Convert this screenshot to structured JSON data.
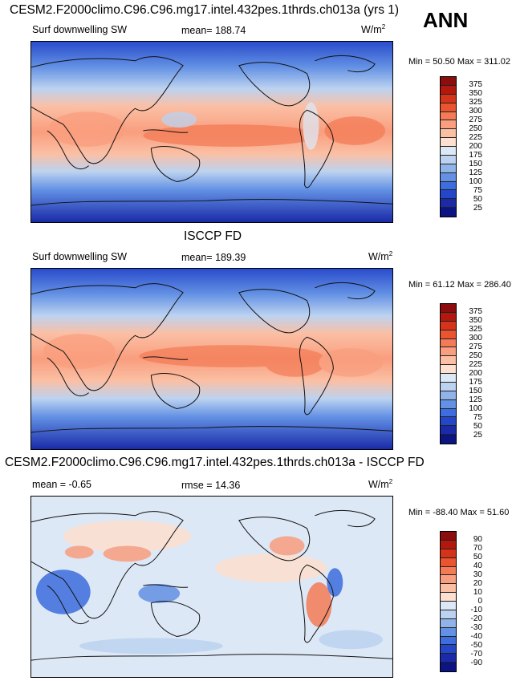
{
  "season_label": "ANN",
  "panels": [
    {
      "id": "model",
      "title": "CESM2.F2000climo.C96.C96.mg17.intel.432pes.1thrds.ch013a (yrs 1)",
      "left_label": "Surf downwelling SW",
      "mean_label": "mean=",
      "mean_value": "188.74",
      "units": "W/m",
      "units_exp": "2",
      "minmax": "Min =  50.50 Max = 311.02"
    },
    {
      "id": "obs",
      "title": "ISCCP FD",
      "left_label": "Surf downwelling SW",
      "mean_label": "mean=",
      "mean_value": "189.39",
      "units": "W/m",
      "units_exp": "2",
      "minmax": "Min =  61.12 Max = 286.40"
    },
    {
      "id": "diff",
      "title": "CESM2.F2000climo.C96.C96.mg17.intel.432pes.1thrds.ch013a - ISCCP FD",
      "left_label": "mean =  -0.65",
      "mean_label": "rmse =",
      "mean_value": "14.36",
      "units": "W/m",
      "units_exp": "2",
      "minmax": "Min = -88.40 Max =  51.60"
    }
  ],
  "colorbars": {
    "abs": {
      "labels": [
        "375",
        "350",
        "325",
        "300",
        "275",
        "250",
        "225",
        "200",
        "175",
        "150",
        "125",
        "100",
        "75",
        "50",
        "25"
      ],
      "colors": [
        "#8b0d0d",
        "#b3180f",
        "#d6341a",
        "#ea5530",
        "#f47b56",
        "#f99e7e",
        "#fbbfa4",
        "#fde0cf",
        "#dde8f6",
        "#bcd2f0",
        "#90b4ea",
        "#6391e4",
        "#3d6dde",
        "#2446c8",
        "#1a2aa8",
        "#0b1480"
      ]
    },
    "diff": {
      "labels": [
        "90",
        "70",
        "50",
        "40",
        "30",
        "20",
        "10",
        "0",
        "-10",
        "-20",
        "-30",
        "-40",
        "-50",
        "-70",
        "-90"
      ],
      "colors": [
        "#8b0d0d",
        "#b3180f",
        "#d6341a",
        "#ea5530",
        "#f47b56",
        "#f99e7e",
        "#fbbfa4",
        "#fde0cf",
        "#dde8f6",
        "#bcd2f0",
        "#90b4ea",
        "#6391e4",
        "#3d6dde",
        "#2446c8",
        "#1a2aa8",
        "#0b1480"
      ]
    }
  }
}
